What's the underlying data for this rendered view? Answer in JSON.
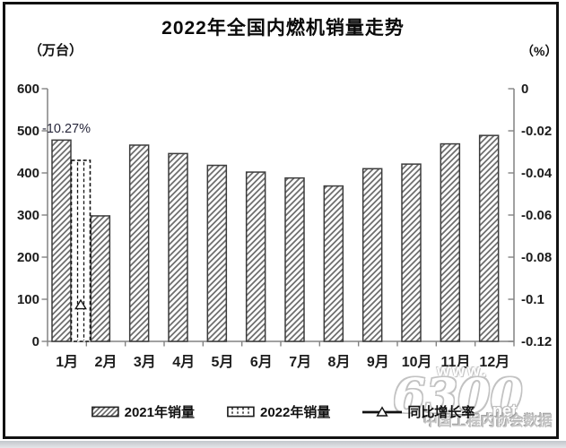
{
  "chart_data": {
    "type": "bar",
    "title": "2022年全国内燃机销量走势",
    "left_axis": {
      "unit": "（万台）",
      "min": 0,
      "max": 600,
      "ticks": [
        600,
        500,
        400,
        300,
        200,
        100,
        0
      ]
    },
    "right_axis": {
      "unit": "（%）",
      "min": -0.12,
      "max": 0,
      "tick_labels": [
        "0",
        "-0.02",
        "-0.04",
        "-0.06",
        "-0.08",
        "-0.1",
        "-0.12"
      ]
    },
    "categories": [
      "1月",
      "2月",
      "3月",
      "4月",
      "5月",
      "6月",
      "7月",
      "8月",
      "9月",
      "10月",
      "11月",
      "12月"
    ],
    "series": [
      {
        "name": "2021年销量",
        "kind": "bar",
        "pattern": "diagonal-hatch",
        "axis": "left",
        "values": [
          478,
          298,
          466,
          446,
          418,
          402,
          388,
          369,
          410,
          421,
          469,
          489
        ]
      },
      {
        "name": "2022年销量",
        "kind": "bar",
        "pattern": "vertical-dash",
        "axis": "left",
        "values": [
          430,
          null,
          null,
          null,
          null,
          null,
          null,
          null,
          null,
          null,
          null,
          null
        ]
      },
      {
        "name": "同比增长率",
        "kind": "line",
        "marker": "open-triangle",
        "axis": "right",
        "values": [
          -0.1027,
          null,
          null,
          null,
          null,
          null,
          null,
          null,
          null,
          null,
          null,
          null
        ]
      }
    ],
    "annotation": {
      "text": "-10.27%",
      "category": "1月"
    },
    "legend": [
      "2021年销量",
      "2022年销量",
      "同比增长率"
    ],
    "legend_position": "bottom",
    "grid": false
  },
  "watermark": {
    "line1": "www.",
    "big": "6300",
    "net": ".net",
    "gray_text": "中国工程内协会数据"
  }
}
